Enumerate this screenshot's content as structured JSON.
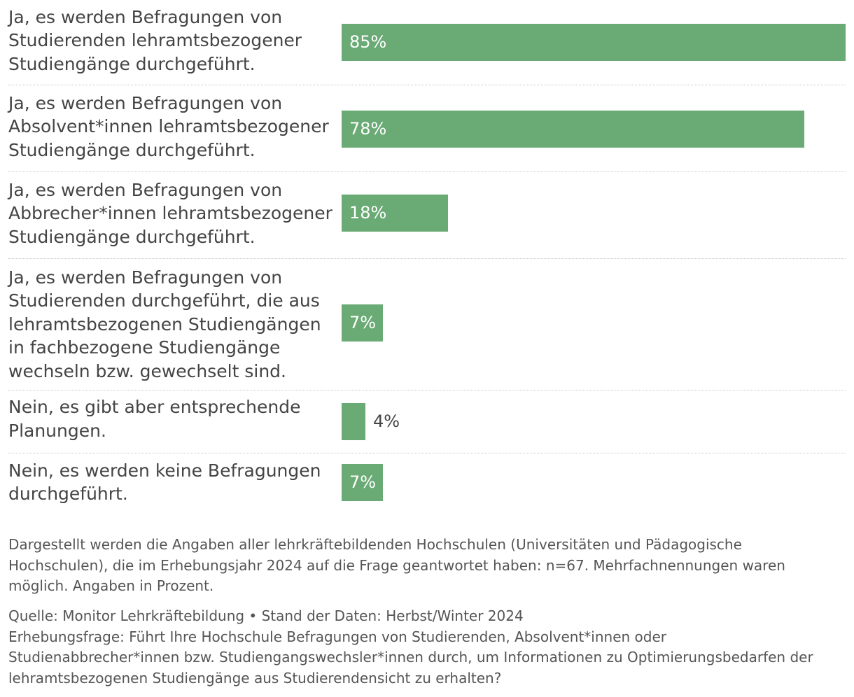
{
  "chart_data": {
    "type": "bar",
    "orientation": "horizontal",
    "unit": "%",
    "xlim": [
      0,
      85
    ],
    "categories": [
      "Ja, es werden Befragungen von Studierenden lehramtsbezogener Studiengänge durchgeführt.",
      "Ja, es werden Befragungen von Absolvent*innen lehramtsbezogener Studiengänge durchgeführt.",
      "Ja, es werden Befragungen von Abbrecher*innen lehramtsbezogener Studiengänge durchgeführt.",
      "Ja, es werden Befragungen von Studierenden durchgeführt, die aus lehramtsbezogenen Studiengängen in fachbezogene Studiengänge wechseln bzw. gewechselt sind.",
      "Nein, es gibt aber entsprechende Planungen.",
      "Nein, es werden keine Befragungen durchgeführt."
    ],
    "values": [
      85,
      78,
      18,
      7,
      4,
      7
    ],
    "value_labels": [
      "85%",
      "78%",
      "18%",
      "7%",
      "4%",
      "7%"
    ],
    "bar_color": "#6aaa74"
  },
  "footnote": "Dargestellt werden die Angaben aller lehrkräftebildenden Hochschulen (Universitäten und Pädagogische Hochschulen), die im Erhebungsjahr 2024 auf die Frage geantwortet haben: n=67. Mehrfachnennungen waren möglich. Angaben in Prozent.",
  "source": "Quelle: Monitor Lehrkräftebildung • Stand der Daten: Herbst/Winter 2024",
  "question": "Erhebungsfrage: Führt Ihre Hochschule Befragungen von Studierenden, Absolvent*innen oder Studienabbrecher*innen bzw. Studiengangswechsler*innen durch, um Informationen zu Optimierungsbedarfen der lehramtsbezogenen Studiengänge aus Studierendensicht zu erhalten?"
}
